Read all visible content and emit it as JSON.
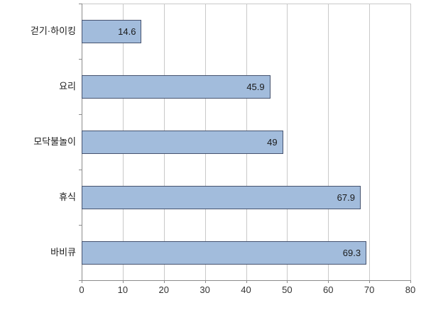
{
  "chart_data": {
    "type": "bar",
    "orientation": "horizontal",
    "title": "",
    "xlabel": "",
    "ylabel": "",
    "categories": [
      "걷기·하이킹",
      "요리",
      "모닥불놀이",
      "휴식",
      "바비큐"
    ],
    "values": [
      14.6,
      45.9,
      49,
      67.9,
      69.3
    ],
    "value_labels": [
      "14.6",
      "45.9",
      "49",
      "67.9",
      "69.3"
    ],
    "xlim": [
      0,
      80
    ],
    "xticks": [
      0,
      10,
      20,
      30,
      40,
      50,
      60,
      70,
      80
    ],
    "grid": true,
    "legend": false,
    "colors": {
      "bar_fill": "#a2bcdc",
      "bar_border": "#46536f",
      "gridline": "#c9c9c9",
      "axis_line": "#8c8c8c",
      "label_text": "#1a1a1a",
      "tick_text": "#333333",
      "background": "#ffffff"
    }
  }
}
